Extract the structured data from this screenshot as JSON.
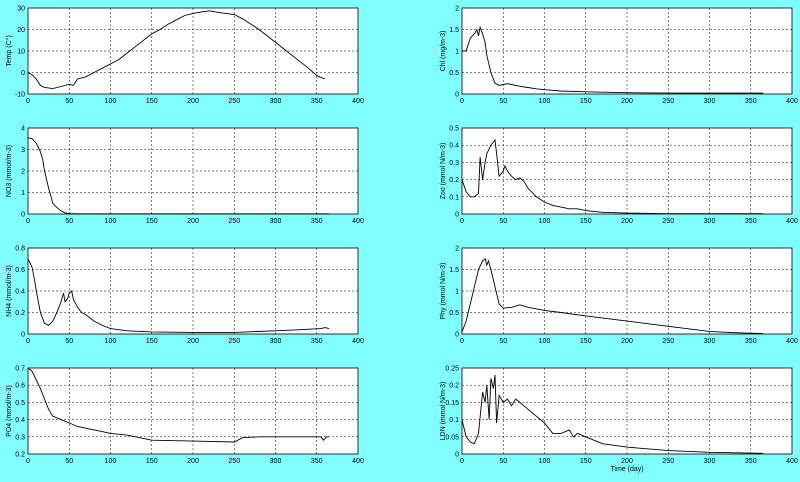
{
  "colors": {
    "figure_background": "#80ffff",
    "axes_background": "#ffffff",
    "line": "#000000"
  },
  "chart_data": [
    {
      "type": "line",
      "ylabel": "Temp (C°)",
      "xlabel": "",
      "xlim": [
        0,
        400
      ],
      "ylim": [
        -10,
        30
      ],
      "xticks": [
        0,
        50,
        100,
        150,
        200,
        250,
        300,
        350,
        400
      ],
      "yticks": [
        -10,
        0,
        10,
        20,
        30
      ],
      "grid": true,
      "series": [
        {
          "x": [
            0,
            5,
            10,
            15,
            20,
            30,
            40,
            50,
            55,
            60,
            70,
            80,
            90,
            100,
            110,
            120,
            130,
            140,
            150,
            160,
            170,
            180,
            190,
            200,
            210,
            220,
            230,
            240,
            250,
            260,
            270,
            280,
            290,
            300,
            310,
            320,
            330,
            340,
            350,
            360
          ],
          "y": [
            0,
            -1,
            -3,
            -6,
            -7,
            -7.5,
            -6.5,
            -5.5,
            -6,
            -3,
            -2,
            0,
            2,
            4,
            6,
            9,
            12,
            15,
            18,
            20,
            22.5,
            24.5,
            26.5,
            27.5,
            28.2,
            28.7,
            28,
            27.5,
            27,
            25,
            22.5,
            20,
            17,
            14,
            11,
            8,
            5,
            2,
            -1.5,
            -3
          ]
        }
      ]
    },
    {
      "type": "line",
      "ylabel": "Chl (mg/m-3)",
      "xlabel": "",
      "xlim": [
        0,
        400
      ],
      "ylim": [
        0,
        2
      ],
      "xticks": [
        0,
        50,
        100,
        150,
        200,
        250,
        300,
        350,
        400
      ],
      "yticks": [
        0,
        0.5,
        1,
        1.5,
        2
      ],
      "grid": true,
      "series": [
        {
          "x": [
            0,
            5,
            10,
            15,
            18,
            20,
            22,
            25,
            28,
            30,
            35,
            40,
            45,
            50,
            55,
            60,
            70,
            80,
            90,
            100,
            120,
            150,
            200,
            250,
            300,
            365
          ],
          "y": [
            1.0,
            1.0,
            1.3,
            1.4,
            1.5,
            1.35,
            1.55,
            1.4,
            1.2,
            0.9,
            0.5,
            0.25,
            0.2,
            0.22,
            0.24,
            0.22,
            0.18,
            0.15,
            0.12,
            0.1,
            0.07,
            0.05,
            0.03,
            0.02,
            0.02,
            0.02
          ]
        }
      ]
    },
    {
      "type": "line",
      "ylabel": "NO3 (mmol/m-3)",
      "xlabel": "",
      "xlim": [
        0,
        400
      ],
      "ylim": [
        0,
        4
      ],
      "xticks": [
        0,
        50,
        100,
        150,
        200,
        250,
        300,
        350,
        400
      ],
      "yticks": [
        0,
        1,
        2,
        3,
        4
      ],
      "grid": true,
      "series": [
        {
          "x": [
            0,
            5,
            10,
            15,
            18,
            20,
            22,
            25,
            28,
            30,
            35,
            40,
            45,
            50,
            60,
            100,
            150,
            200,
            250,
            300,
            365
          ],
          "y": [
            3.55,
            3.5,
            3.3,
            2.9,
            2.5,
            2.0,
            1.7,
            1.2,
            0.8,
            0.5,
            0.3,
            0.15,
            0.05,
            0.02,
            0.01,
            0.01,
            0.01,
            0.01,
            0.01,
            0.01,
            0.01
          ]
        }
      ]
    },
    {
      "type": "line",
      "ylabel": "Zoo (mmol N/m-3)",
      "xlabel": "",
      "xlim": [
        0,
        400
      ],
      "ylim": [
        0,
        0.5
      ],
      "xticks": [
        0,
        50,
        100,
        150,
        200,
        250,
        300,
        350,
        400
      ],
      "yticks": [
        0,
        0.1,
        0.2,
        0.3,
        0.4,
        0.5
      ],
      "grid": true,
      "series": [
        {
          "x": [
            0,
            5,
            10,
            15,
            20,
            22,
            25,
            28,
            30,
            35,
            40,
            42,
            45,
            50,
            52,
            55,
            60,
            65,
            70,
            75,
            80,
            90,
            100,
            110,
            120,
            130,
            140,
            150,
            170,
            200,
            250,
            300,
            365
          ],
          "y": [
            0.2,
            0.13,
            0.1,
            0.1,
            0.12,
            0.33,
            0.2,
            0.3,
            0.35,
            0.4,
            0.43,
            0.35,
            0.22,
            0.25,
            0.28,
            0.25,
            0.22,
            0.2,
            0.21,
            0.19,
            0.15,
            0.1,
            0.07,
            0.05,
            0.04,
            0.03,
            0.03,
            0.02,
            0.01,
            0.005,
            0.002,
            0.002,
            0.002
          ]
        }
      ]
    },
    {
      "type": "line",
      "ylabel": "NH4 (mmol/m-3)",
      "xlabel": "",
      "xlim": [
        0,
        400
      ],
      "ylim": [
        0,
        0.8
      ],
      "xticks": [
        0,
        50,
        100,
        150,
        200,
        250,
        300,
        350,
        400
      ],
      "yticks": [
        0,
        0.2,
        0.4,
        0.6,
        0.8
      ],
      "grid": true,
      "series": [
        {
          "x": [
            0,
            5,
            8,
            10,
            15,
            20,
            25,
            30,
            35,
            40,
            43,
            45,
            48,
            50,
            53,
            55,
            60,
            65,
            70,
            80,
            90,
            100,
            120,
            150,
            200,
            250,
            300,
            330,
            355,
            360,
            365
          ],
          "y": [
            0.7,
            0.62,
            0.5,
            0.4,
            0.2,
            0.1,
            0.08,
            0.12,
            0.2,
            0.3,
            0.38,
            0.3,
            0.33,
            0.38,
            0.4,
            0.32,
            0.25,
            0.2,
            0.18,
            0.12,
            0.08,
            0.05,
            0.03,
            0.02,
            0.015,
            0.015,
            0.03,
            0.04,
            0.05,
            0.06,
            0.05
          ]
        }
      ]
    },
    {
      "type": "line",
      "ylabel": "Phy (mmol N/m-3)",
      "xlabel": "",
      "xlim": [
        0,
        400
      ],
      "ylim": [
        0,
        2
      ],
      "xticks": [
        0,
        50,
        100,
        150,
        200,
        250,
        300,
        350,
        400
      ],
      "yticks": [
        0,
        0.5,
        1,
        1.5,
        2
      ],
      "grid": true,
      "series": [
        {
          "x": [
            0,
            5,
            10,
            15,
            20,
            25,
            28,
            30,
            32,
            35,
            40,
            45,
            50,
            60,
            70,
            80,
            100,
            120,
            150,
            200,
            250,
            300,
            330,
            365
          ],
          "y": [
            0.05,
            0.3,
            0.7,
            1.1,
            1.5,
            1.7,
            1.75,
            1.6,
            1.7,
            1.5,
            1.1,
            0.7,
            0.6,
            0.62,
            0.68,
            0.62,
            0.55,
            0.5,
            0.42,
            0.3,
            0.18,
            0.06,
            0.03,
            0.01
          ]
        }
      ]
    },
    {
      "type": "line",
      "ylabel": "PO4 (mmol/m-3)",
      "xlabel": "",
      "xlim": [
        0,
        400
      ],
      "ylim": [
        0.2,
        0.7
      ],
      "xticks": [
        0,
        50,
        100,
        150,
        200,
        250,
        300,
        350,
        400
      ],
      "yticks": [
        0.2,
        0.3,
        0.4,
        0.5,
        0.6,
        0.7
      ],
      "grid": true,
      "series": [
        {
          "x": [
            0,
            5,
            10,
            15,
            20,
            25,
            30,
            40,
            50,
            60,
            70,
            80,
            90,
            100,
            120,
            150,
            200,
            250,
            260,
            280,
            300,
            320,
            340,
            355,
            358,
            362,
            365
          ],
          "y": [
            0.7,
            0.68,
            0.63,
            0.58,
            0.52,
            0.46,
            0.42,
            0.4,
            0.38,
            0.36,
            0.35,
            0.34,
            0.33,
            0.32,
            0.31,
            0.28,
            0.275,
            0.27,
            0.295,
            0.3,
            0.3,
            0.3,
            0.3,
            0.3,
            0.28,
            0.3,
            0.3
          ]
        }
      ]
    },
    {
      "type": "line",
      "ylabel": "LDN (mmol N/m-3)",
      "xlabel": "Time (day)",
      "xlim": [
        0,
        400
      ],
      "ylim": [
        0,
        0.25
      ],
      "xticks": [
        0,
        50,
        100,
        150,
        200,
        250,
        300,
        350,
        400
      ],
      "yticks": [
        0,
        0.05,
        0.1,
        0.15,
        0.2,
        0.25
      ],
      "grid": true,
      "series": [
        {
          "x": [
            0,
            5,
            10,
            15,
            20,
            25,
            28,
            30,
            33,
            35,
            38,
            40,
            42,
            45,
            50,
            55,
            60,
            65,
            70,
            75,
            80,
            90,
            100,
            110,
            120,
            130,
            135,
            140,
            150,
            170,
            200,
            250,
            300,
            365
          ],
          "y": [
            0.1,
            0.05,
            0.035,
            0.03,
            0.06,
            0.18,
            0.15,
            0.2,
            0.1,
            0.22,
            0.19,
            0.23,
            0.09,
            0.17,
            0.15,
            0.16,
            0.14,
            0.16,
            0.15,
            0.14,
            0.13,
            0.11,
            0.09,
            0.06,
            0.06,
            0.07,
            0.05,
            0.06,
            0.05,
            0.03,
            0.02,
            0.01,
            0.005,
            0.002
          ]
        }
      ]
    }
  ]
}
